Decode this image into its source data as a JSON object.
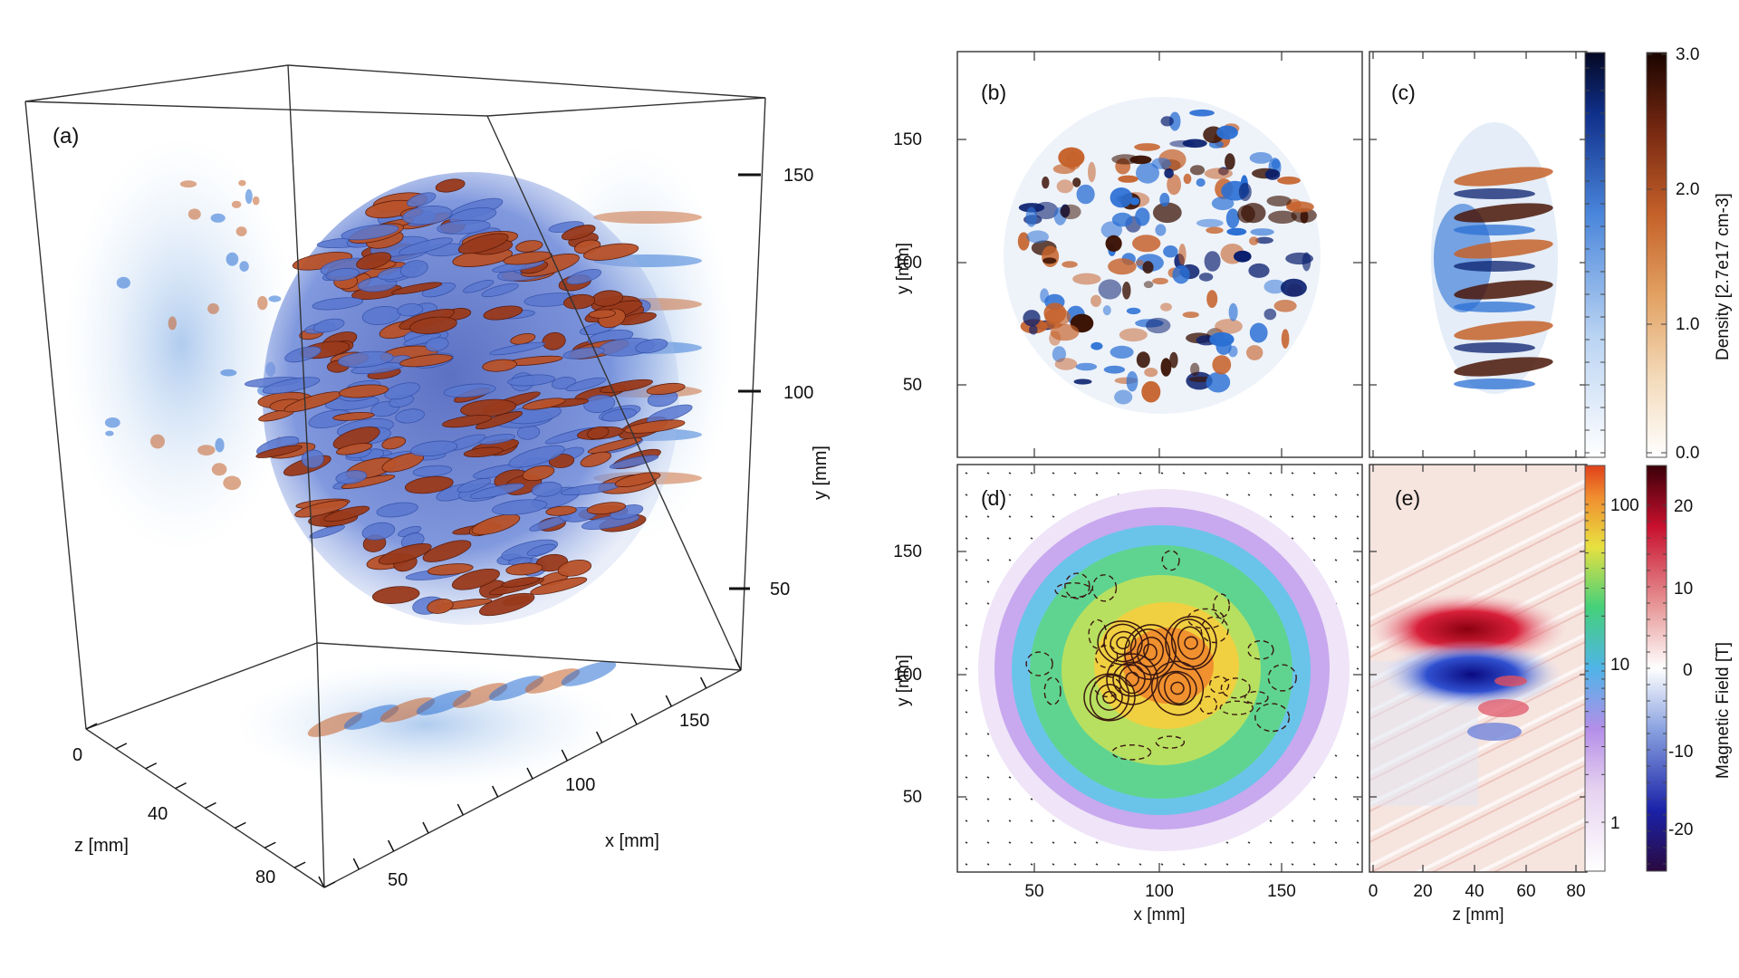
{
  "figure": {
    "panel_a": {
      "label": "(a)",
      "y_axis_label": "y [mm]",
      "y_ticks": [
        "150",
        "100",
        "50"
      ],
      "z_axis_label": "z [mm]",
      "z_ticks": [
        "0",
        "40",
        "80"
      ],
      "x_axis_label": "x [mm]",
      "x_ticks": [
        "50",
        "100",
        "150"
      ]
    },
    "panel_b": {
      "label": "(b)",
      "y_axis_label": "y [mm]",
      "y_ticks": [
        "150",
        "100",
        "50"
      ]
    },
    "panel_c": {
      "label": "(c)"
    },
    "panel_d": {
      "label": "(d)",
      "y_axis_label": "y [mm]",
      "y_ticks": [
        "150",
        "100",
        "50"
      ],
      "x_axis_label": "x [mm]",
      "x_ticks": [
        "50",
        "100",
        "150"
      ]
    },
    "panel_e": {
      "label": "(e)",
      "x_axis_label": "z [mm]",
      "x_ticks": [
        "0",
        "20",
        "40",
        "60",
        "80"
      ]
    },
    "colorbar_density": {
      "label": "Density [2.7e17 cm-3]",
      "ticks": [
        "3.0",
        "2.0",
        "1.0",
        "0.0"
      ]
    },
    "colorbar_log": {
      "ticks": [
        "100",
        "10",
        "1"
      ]
    },
    "colorbar_field": {
      "label": "Magnetic Field [T]",
      "ticks": [
        "20",
        "10",
        "0",
        "-10",
        "-20"
      ]
    },
    "colors": {
      "blue": "#2a6fd4",
      "dark_blue": "#0a1f6e",
      "orange": "#c5612a",
      "dark_brown": "#3a1204",
      "red": "#c8102e"
    }
  }
}
